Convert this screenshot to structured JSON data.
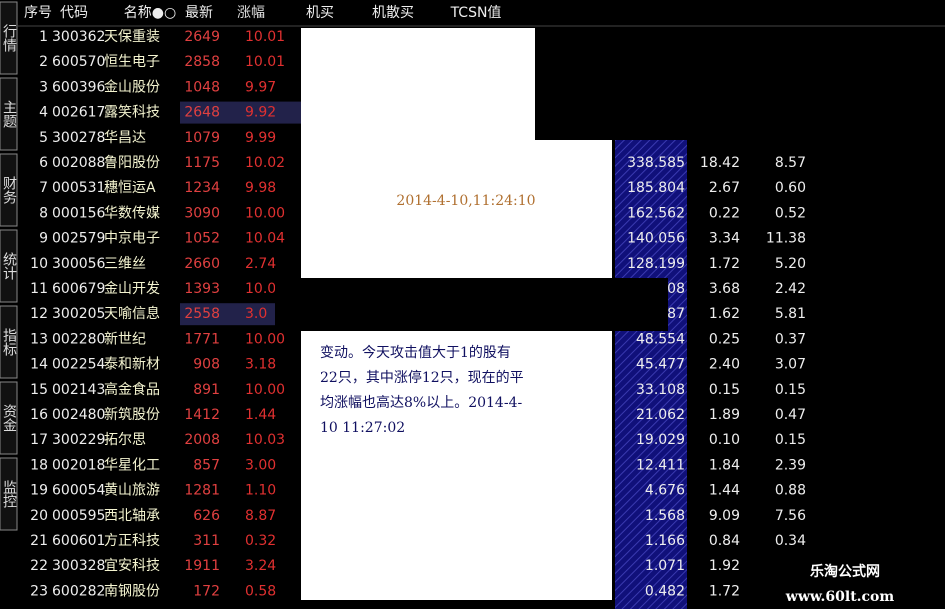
{
  "sidebar": [
    "行情",
    "主题",
    "财务",
    "统计",
    "指标",
    "资金",
    "监控"
  ],
  "header": [
    "序号",
    "代码",
    "名称●○",
    "最新",
    "涨幅",
    "机买",
    "机散买",
    "TCSN值"
  ],
  "rows": [
    [
      "1",
      "300362",
      "天保重装",
      "2649",
      "10.01"
    ],
    [
      "2",
      "600570",
      "恒生电子",
      "2858",
      "10.01"
    ],
    [
      "3",
      "600396",
      "金山股份",
      "1048",
      "9.97"
    ],
    [
      "4",
      "002617",
      "露笑科技",
      "2648",
      "9.92"
    ],
    [
      "5",
      "300278",
      "华昌达",
      "1079",
      "9.99"
    ],
    [
      "6",
      "002088",
      "鲁阳股份",
      "1175",
      "10.02"
    ],
    [
      "7",
      "000531",
      "穗恒运A",
      "1234",
      "9.98"
    ],
    [
      "8",
      "000156",
      "华数传媒",
      "3090",
      "10.00"
    ],
    [
      "9",
      "002579",
      "中京电子",
      "1052",
      "10.04"
    ],
    [
      "10",
      "300056",
      "三维丝",
      "2660",
      "2.74"
    ],
    [
      "11",
      "600679",
      "金山开发",
      "1393",
      "10.0"
    ],
    [
      "12",
      "300205",
      "天喻信息",
      "2558",
      "3.0"
    ],
    [
      "13",
      "002280",
      "新世纪",
      "1771",
      "10.00"
    ],
    [
      "14",
      "002254",
      "泰和新材",
      "908",
      "3.18"
    ],
    [
      "15",
      "002143",
      "高金食品",
      "891",
      "10.00"
    ],
    [
      "16",
      "002480",
      "新筑股份",
      "1412",
      "1.44"
    ],
    [
      "17",
      "300229",
      "拓尔思",
      "2008",
      "10.03"
    ],
    [
      "18",
      "002018",
      "华星化工",
      "857",
      "3.00"
    ],
    [
      "19",
      "600054",
      "黄山旅游",
      "1281",
      "1.10"
    ],
    [
      "20",
      "000595",
      "西北轴承",
      "626",
      "8.87"
    ],
    [
      "21",
      "600601",
      "方正科技",
      "311",
      "0.32"
    ],
    [
      "22",
      "300328",
      "宜安科技",
      "1911",
      "3.24"
    ],
    [
      "23",
      "600282",
      "南钢股份",
      "172",
      "0.58"
    ]
  ],
  "right_rows": [
    [
      "338.585",
      "18.42",
      "8.57"
    ],
    [
      "185.804",
      "2.67",
      "0.60"
    ],
    [
      "162.562",
      "0.22",
      "0.52"
    ],
    [
      "140.056",
      "3.34",
      "11.38"
    ],
    [
      "128.199",
      "1.72",
      "5.20"
    ],
    [
      "08",
      "3.68",
      "2.42"
    ],
    [
      "87",
      "1.62",
      "5.81"
    ],
    [
      "48.554",
      "0.25",
      "0.37"
    ],
    [
      "45.477",
      "2.40",
      "3.07"
    ],
    [
      "33.108",
      "0.15",
      "0.15"
    ],
    [
      "21.062",
      "1.89",
      "0.47"
    ],
    [
      "19.029",
      "0.10",
      "0.15"
    ],
    [
      "12.411",
      "1.84",
      "2.39"
    ],
    [
      "4.676",
      "1.44",
      "0.88"
    ],
    [
      "1.568",
      "9.09",
      "7.56"
    ],
    [
      "1.166",
      "0.84",
      "0.34"
    ],
    [
      "1.071",
      "1.92"
    ],
    [
      "0.482",
      "1.72"
    ]
  ],
  "popup": {
    "time": "2014-4-10,11:24:10",
    "lines": [
      "变动。今天攻击值大于1的股有",
      "22只，其中涨停12只，现在的平",
      "均涨幅也高达8%以上。2014-4-",
      "10 11:27:02"
    ]
  },
  "watermark": {
    "name": "乐淘公式网",
    "url": "www.60lt.com"
  }
}
